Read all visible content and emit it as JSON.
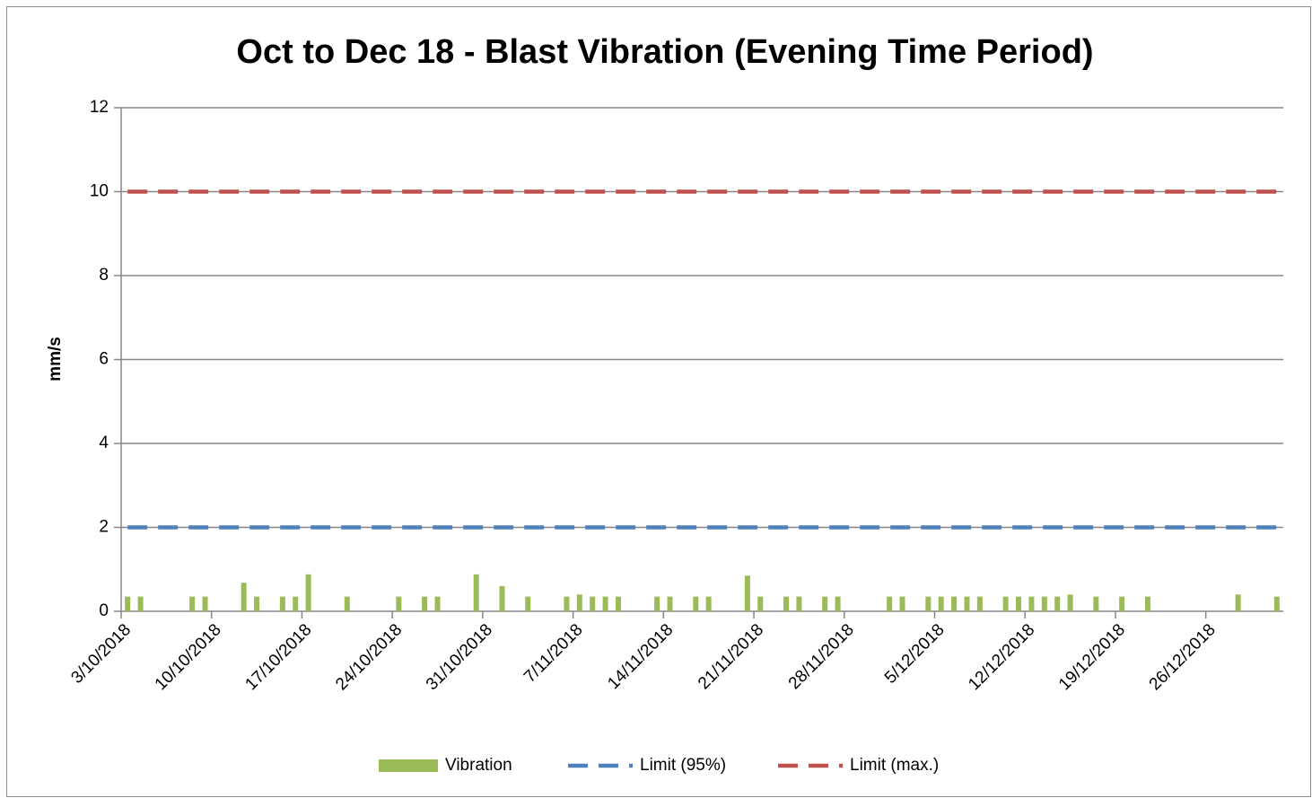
{
  "chart_data": {
    "type": "bar",
    "title": "Oct to Dec 18 - Blast Vibration (Evening Time Period)",
    "y_label": "mm/s",
    "x": [
      "3/10/2018",
      "4/10/2018",
      "8/10/2018",
      "9/10/2018",
      "12/10/2018",
      "13/10/2018",
      "15/10/2018",
      "16/10/2018",
      "17/10/2018",
      "20/10/2018",
      "24/10/2018",
      "26/10/2018",
      "27/10/2018",
      "30/10/2018",
      "1/11/2018",
      "3/11/2018",
      "6/11/2018",
      "7/11/2018",
      "8/11/2018",
      "9/11/2018",
      "10/11/2018",
      "13/11/2018",
      "14/11/2018",
      "16/11/2018",
      "17/11/2018",
      "20/11/2018",
      "21/11/2018",
      "23/11/2018",
      "24/11/2018",
      "26/11/2018",
      "27/11/2018",
      "1/12/2018",
      "2/12/2018",
      "4/12/2018",
      "5/12/2018",
      "6/12/2018",
      "7/12/2018",
      "8/12/2018",
      "10/12/2018",
      "11/12/2018",
      "12/12/2018",
      "13/12/2018",
      "14/12/2018",
      "15/12/2018",
      "17/12/2018",
      "19/12/2018",
      "21/12/2018",
      "28/12/2018",
      "31/12/2018"
    ],
    "series": [
      {
        "name": "Vibration",
        "color": "#9bbb59",
        "kind": "bar",
        "values": [
          0.35,
          0.35,
          0.35,
          0.35,
          0.68,
          0.35,
          0.35,
          0.35,
          0.88,
          0.35,
          0.35,
          0.35,
          0.35,
          0.88,
          0.6,
          0.35,
          0.35,
          0.4,
          0.35,
          0.35,
          0.35,
          0.35,
          0.35,
          0.35,
          0.35,
          0.85,
          0.35,
          0.35,
          0.35,
          0.35,
          0.35,
          0.35,
          0.35,
          0.35,
          0.35,
          0.35,
          0.35,
          0.35,
          0.35,
          0.35,
          0.35,
          0.35,
          0.35,
          0.4,
          0.35,
          0.35,
          0.35,
          0.4,
          0.35
        ]
      },
      {
        "name": "Limit (95%)",
        "color": "#4f81bd",
        "kind": "dashed-line",
        "values": [
          2,
          2,
          2,
          2,
          2,
          2,
          2,
          2,
          2,
          2,
          2,
          2,
          2,
          2,
          2,
          2,
          2,
          2,
          2,
          2,
          2,
          2,
          2,
          2,
          2,
          2,
          2,
          2,
          2,
          2,
          2,
          2,
          2,
          2,
          2,
          2,
          2,
          2,
          2,
          2,
          2,
          2,
          2,
          2,
          2,
          2,
          2,
          2,
          2
        ]
      },
      {
        "name": "Limit (max.)",
        "color": "#c0504d",
        "kind": "dashed-line",
        "values": [
          10,
          10,
          10,
          10,
          10,
          10,
          10,
          10,
          10,
          10,
          10,
          10,
          10,
          10,
          10,
          10,
          10,
          10,
          10,
          10,
          10,
          10,
          10,
          10,
          10,
          10,
          10,
          10,
          10,
          10,
          10,
          10,
          10,
          10,
          10,
          10,
          10,
          10,
          10,
          10,
          10,
          10,
          10,
          10,
          10,
          10,
          10,
          10,
          10
        ]
      }
    ],
    "xlim": [
      "3/10/2018",
      "1/1/2019"
    ],
    "xticks": [
      "3/10/2018",
      "10/10/2018",
      "17/10/2018",
      "24/10/2018",
      "31/10/2018",
      "7/11/2018",
      "14/11/2018",
      "21/11/2018",
      "28/11/2018",
      "5/12/2018",
      "12/12/2018",
      "19/12/2018",
      "26/12/2018"
    ],
    "ylim": [
      0,
      12
    ],
    "yticks": [
      0,
      2,
      4,
      6,
      8,
      10,
      12
    ],
    "grid": true,
    "legend": "bottom"
  }
}
